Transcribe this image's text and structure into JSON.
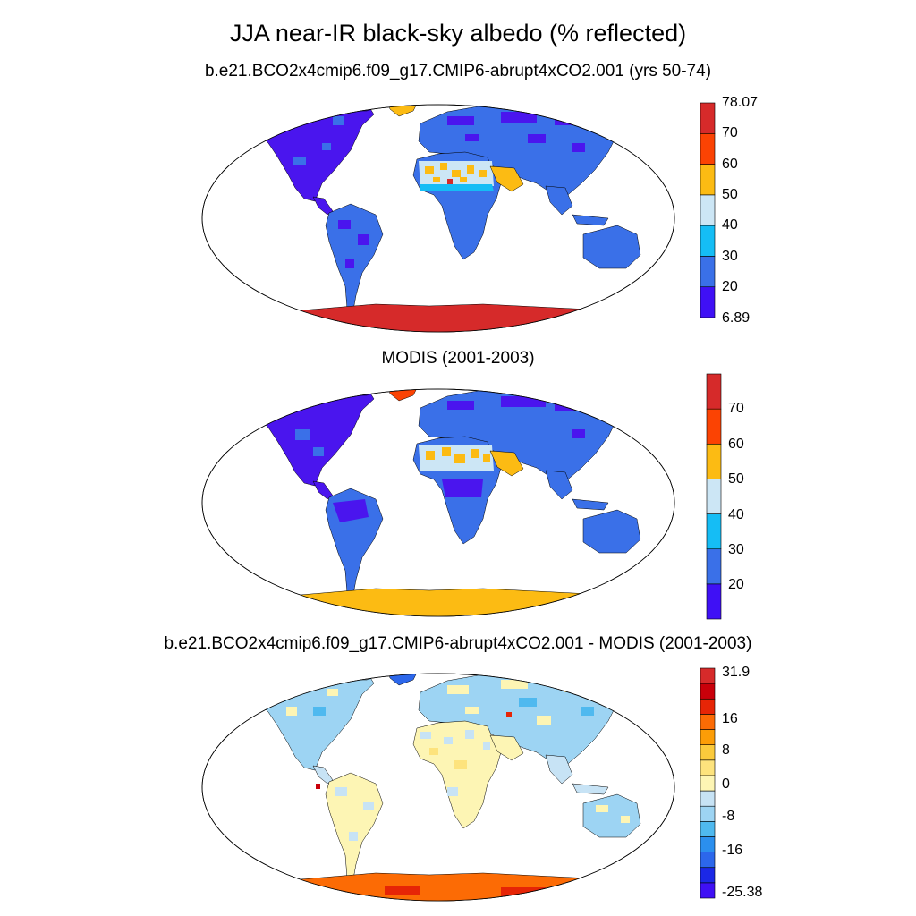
{
  "figure": {
    "title": "JJA near-IR black-sky albedo (% reflected)"
  },
  "panels": [
    {
      "id": "model",
      "title": "b.e21.BCO2x4cmip6.f09_g17.CMIP6-abrupt4xCO2.001 (yrs 50-74)",
      "colorbar": {
        "colors": [
          "#3f10f5",
          "#3a70e8",
          "#15bdf5",
          "#cce6f5",
          "#fcbb13",
          "#fb4303",
          "#d62a2a"
        ],
        "ticks": [
          "78.07",
          "70",
          "60",
          "50",
          "40",
          "30",
          "20",
          "6.89"
        ]
      }
    },
    {
      "id": "obs",
      "title": "MODIS (2001-2003)",
      "colorbar": {
        "colors": [
          "#3f10f5",
          "#3a70e8",
          "#15bdf5",
          "#cce6f5",
          "#fcbb13",
          "#fb4303",
          "#d62a2a"
        ],
        "ticks": [
          "70",
          "60",
          "50",
          "40",
          "30",
          "20"
        ]
      }
    },
    {
      "id": "diff",
      "title": "b.e21.BCO2x4cmip6.f09_g17.CMIP6-abrupt4xCO2.001 - MODIS (2001-2003)",
      "colorbar": {
        "colors": [
          "#3f10f5",
          "#1b28e6",
          "#2c67eb",
          "#2b8fee",
          "#4fb9ef",
          "#9dd4f3",
          "#c7e3f5",
          "#fdf5b4",
          "#fde37d",
          "#fbca3c",
          "#fc9d07",
          "#fc6b05",
          "#e62506",
          "#c9000a",
          "#d62a2a"
        ],
        "ticks": [
          "31.9",
          "16",
          "8",
          "0",
          "-8",
          "-16",
          "-25.38"
        ]
      }
    }
  ]
}
